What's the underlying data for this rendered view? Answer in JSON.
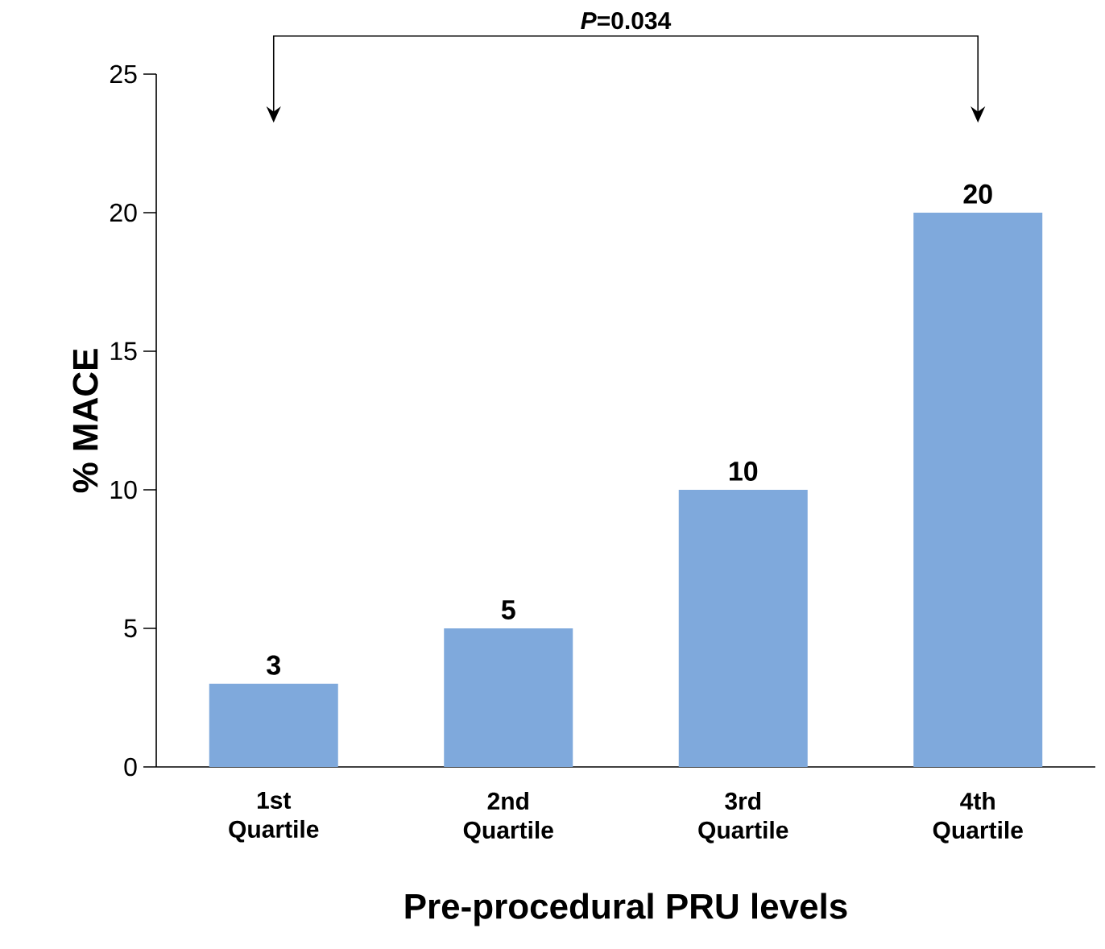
{
  "chart_data": {
    "type": "bar",
    "categories": [
      "1st Quartile",
      "2nd Quartile",
      "3rd Quartile",
      "4th Quartile"
    ],
    "values": [
      3,
      5,
      10,
      20
    ],
    "color": "#7fa9dc",
    "data_labels": true,
    "xlabel": "Pre-procedural PRU levels",
    "ylabel": "% MACE",
    "ylim": [
      0,
      25
    ],
    "yticks": [
      0,
      5,
      10,
      15,
      20,
      25
    ],
    "grid": false,
    "annotations": [
      "*P*=0.034"
    ]
  }
}
